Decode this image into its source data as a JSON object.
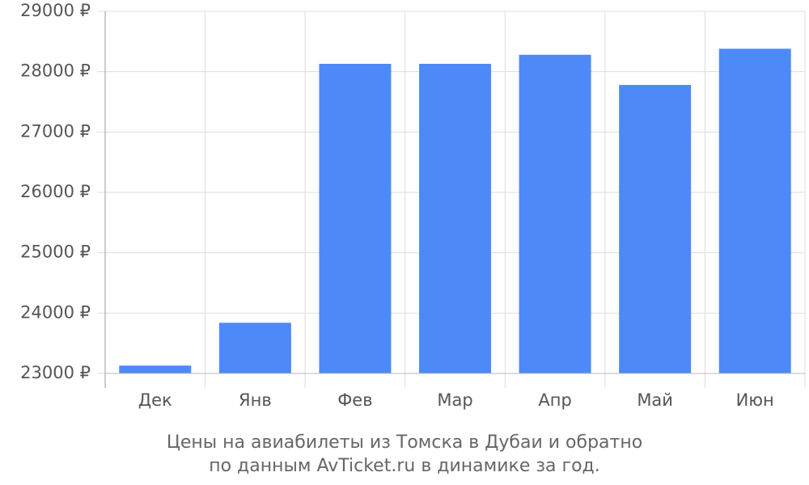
{
  "chart_data": {
    "type": "bar",
    "title": [
      "Цены на авиабилеты из Томска в Дубаи и обратно",
      "по данным AvTicket.ru в динамике за год."
    ],
    "categories": [
      "Дек",
      "Янв",
      "Фев",
      "Мар",
      "Апр",
      "Май",
      "Июн"
    ],
    "values": [
      23130,
      23840,
      28130,
      28130,
      28280,
      27780,
      28380
    ],
    "color": "#4d8af8",
    "ylim": [
      23000,
      29000
    ],
    "yticks": [
      {
        "value": 23000,
        "label": "23000 ₽"
      },
      {
        "value": 24000,
        "label": "24000 ₽"
      },
      {
        "value": 25000,
        "label": "25000 ₽"
      },
      {
        "value": 26000,
        "label": "26000 ₽"
      },
      {
        "value": 27000,
        "label": "27000 ₽"
      },
      {
        "value": 28000,
        "label": "28000 ₽"
      },
      {
        "value": 29000,
        "label": "29000 ₽"
      }
    ],
    "grid": true
  }
}
